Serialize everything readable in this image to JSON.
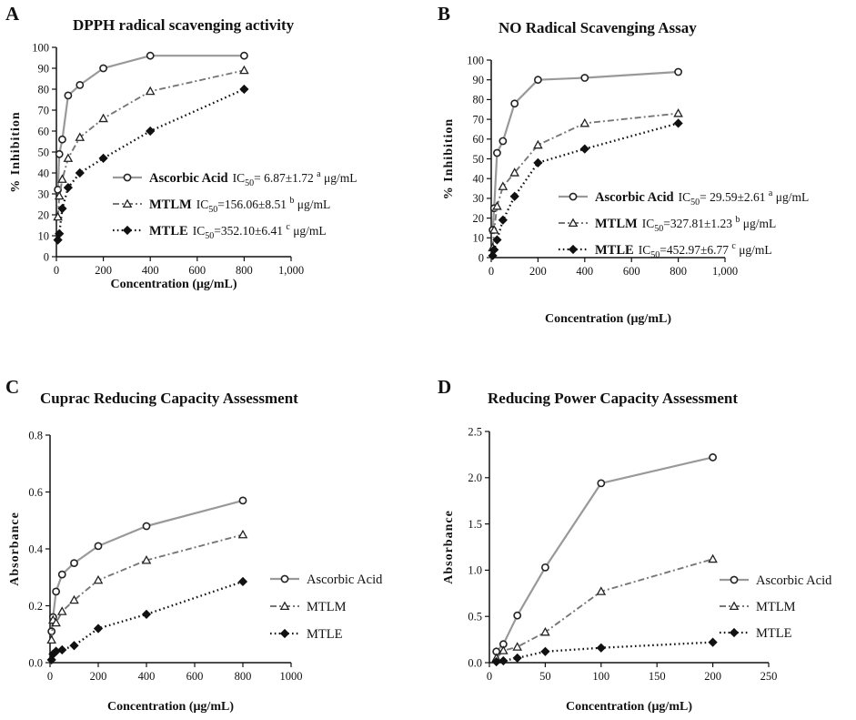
{
  "chart_data": [
    {
      "type": "line",
      "panel": "A",
      "title": "DPPH radical scavenging activity",
      "xlabel": "Concentration (μg/mL)",
      "ylabel": "% Inhibition",
      "xlim": [
        0,
        1000
      ],
      "ylim": [
        0,
        100
      ],
      "xticks": [
        "0",
        "200",
        "400",
        "600",
        "800",
        "1,000"
      ],
      "yticks": [
        "0",
        "10",
        "20",
        "30",
        "40",
        "50",
        "60",
        "70",
        "80",
        "90",
        "100"
      ],
      "legend_bold": true,
      "series": [
        {
          "name": "Ascorbic Acid",
          "ic_prefix": "IC",
          "ic_sub": "50",
          "ic_text": "= 6.87±1.72",
          "ic_sup": "a",
          "ic_unit": "μg/mL",
          "x": [
            6.25,
            12.5,
            25,
            50,
            100,
            200,
            400,
            800
          ],
          "y": [
            32,
            49,
            56,
            77,
            82,
            90,
            96,
            96
          ]
        },
        {
          "name": "MTLM",
          "ic_prefix": "IC",
          "ic_sub": "50",
          "ic_text": "=156.06±8.51",
          "ic_sup": "b",
          "ic_unit": "μg/mL",
          "x": [
            6.25,
            12.5,
            25,
            50,
            100,
            200,
            400,
            800
          ],
          "y": [
            19,
            29,
            37,
            47,
            57,
            66,
            79,
            89
          ]
        },
        {
          "name": "MTLE",
          "ic_prefix": "IC",
          "ic_sub": "50",
          "ic_text": "=352.10±6.41",
          "ic_sup": "c",
          "ic_unit": "μg/mL",
          "x": [
            6.25,
            12.5,
            25,
            50,
            100,
            200,
            400,
            800
          ],
          "y": [
            8,
            11,
            23,
            33,
            40,
            47,
            60,
            80
          ]
        }
      ]
    },
    {
      "type": "line",
      "panel": "B",
      "title": "NO Radical Scavenging Assay",
      "xlabel": "Concentration (μg/mL)",
      "ylabel": "% Inhibition",
      "xlim": [
        0,
        1000
      ],
      "ylim": [
        0,
        100
      ],
      "xticks": [
        "0",
        "200",
        "400",
        "600",
        "800",
        "1,000"
      ],
      "yticks": [
        "0",
        "10",
        "20",
        "30",
        "40",
        "50",
        "60",
        "70",
        "80",
        "90",
        "100"
      ],
      "legend_bold": true,
      "series": [
        {
          "name": "Ascorbic Acid",
          "ic_prefix": "IC",
          "ic_sub": "50",
          "ic_text": "= 29.59±2.61",
          "ic_sup": "a",
          "ic_unit": "μg/mL",
          "x": [
            6.25,
            12.5,
            25,
            50,
            100,
            200,
            400,
            800
          ],
          "y": [
            14,
            25,
            53,
            59,
            78,
            90,
            91,
            94
          ]
        },
        {
          "name": "MTLM",
          "ic_prefix": "IC",
          "ic_sub": "50",
          "ic_text": "=327.81±1.23",
          "ic_sup": "b",
          "ic_unit": "μg/mL",
          "x": [
            6.25,
            12.5,
            25,
            50,
            100,
            200,
            400,
            800
          ],
          "y": [
            5,
            14,
            26,
            36,
            43,
            57,
            68,
            73
          ]
        },
        {
          "name": "MTLE",
          "ic_prefix": "IC",
          "ic_sub": "50",
          "ic_text": "=452.97±6.77",
          "ic_sup": "c",
          "ic_unit": "μg/mL",
          "x": [
            6.25,
            12.5,
            25,
            50,
            100,
            200,
            400,
            800
          ],
          "y": [
            1,
            4,
            9,
            19,
            31,
            48,
            55,
            68
          ]
        }
      ]
    },
    {
      "type": "line",
      "panel": "C",
      "title": "Cuprac Reducing Capacity Assessment",
      "xlabel": "Concentration (μg/mL)",
      "ylabel": "Absorbance",
      "xlim": [
        0,
        1000
      ],
      "ylim": [
        0,
        0.8
      ],
      "xticks": [
        "0",
        "200",
        "400",
        "600",
        "800",
        "1000"
      ],
      "yticks": [
        "0.0",
        "0.2",
        "0.4",
        "0.6",
        "0.8"
      ],
      "legend_bold": false,
      "series": [
        {
          "name": "Ascorbic Acid",
          "x": [
            6.25,
            12.5,
            25,
            50,
            100,
            200,
            400,
            800
          ],
          "y": [
            0.11,
            0.16,
            0.25,
            0.31,
            0.35,
            0.41,
            0.48,
            0.57
          ]
        },
        {
          "name": "MTLM",
          "x": [
            6.25,
            12.5,
            25,
            50,
            100,
            200,
            400,
            800
          ],
          "y": [
            0.08,
            0.15,
            0.14,
            0.18,
            0.22,
            0.29,
            0.36,
            0.45
          ]
        },
        {
          "name": "MTLE",
          "x": [
            6.25,
            12.5,
            25,
            50,
            100,
            200,
            400,
            800
          ],
          "y": [
            0.01,
            0.03,
            0.04,
            0.045,
            0.06,
            0.12,
            0.17,
            0.285
          ]
        }
      ]
    },
    {
      "type": "line",
      "panel": "D",
      "title": "Reducing Power Capacity Assessment",
      "xlabel": "Concentration (μg/mL)",
      "ylabel": "Absorbance",
      "xlim": [
        0,
        250
      ],
      "ylim": [
        0,
        2.5
      ],
      "xticks": [
        "0",
        "50",
        "100",
        "150",
        "200",
        "250"
      ],
      "yticks": [
        "0.0",
        "0.5",
        "1.0",
        "1.5",
        "2.0",
        "2.5"
      ],
      "legend_bold": false,
      "series": [
        {
          "name": "Ascorbic Acid",
          "x": [
            6.25,
            12.5,
            25,
            50,
            100,
            200
          ],
          "y": [
            0.12,
            0.2,
            0.51,
            1.03,
            1.94,
            2.22
          ]
        },
        {
          "name": "MTLM",
          "x": [
            6.25,
            12.5,
            25,
            50,
            100,
            200
          ],
          "y": [
            0.05,
            0.13,
            0.17,
            0.33,
            0.77,
            1.12
          ]
        },
        {
          "name": "MTLE",
          "x": [
            6.25,
            12.5,
            25,
            50,
            100,
            200
          ],
          "y": [
            0.01,
            0.02,
            0.05,
            0.12,
            0.16,
            0.22
          ]
        }
      ]
    }
  ]
}
